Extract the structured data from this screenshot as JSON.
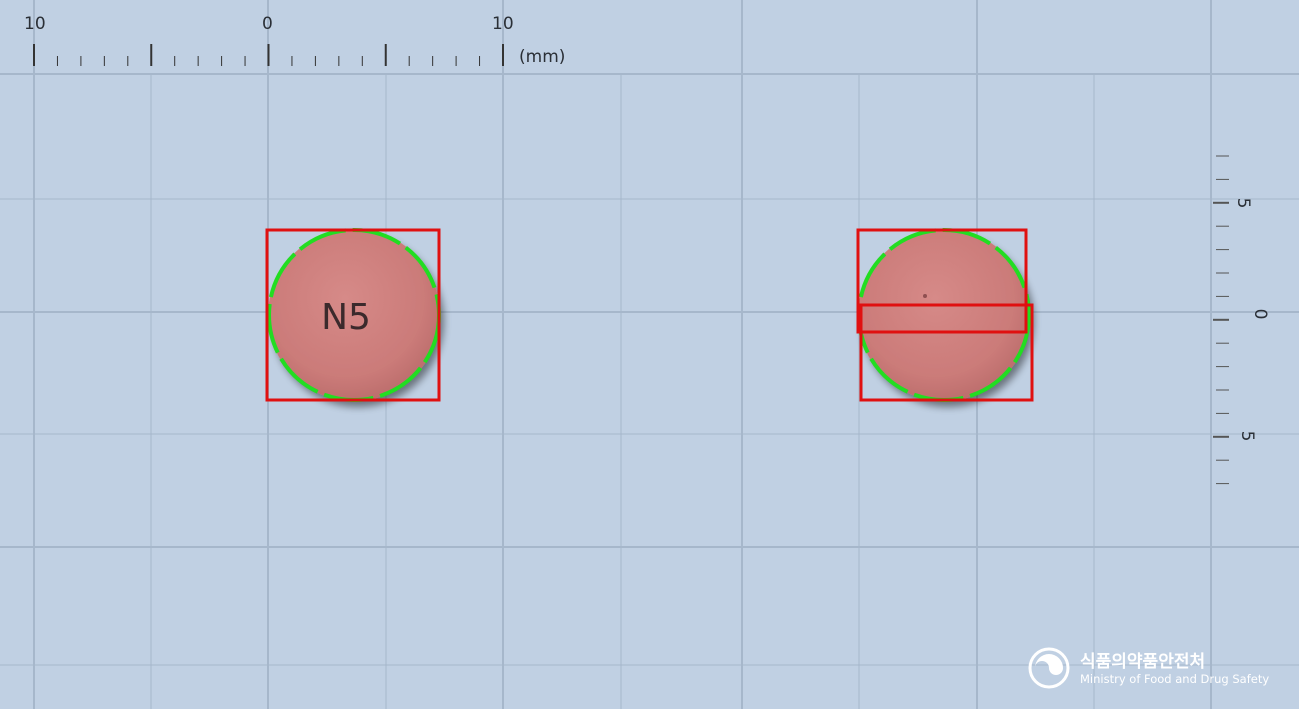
{
  "ruler_top": {
    "labels": [
      "10",
      "0",
      "10"
    ],
    "unit": "(mm)"
  },
  "ruler_right": {
    "labels": [
      "5",
      "0",
      "5"
    ]
  },
  "pill_front": {
    "imprint": "N5",
    "color": "#cf7f7d"
  },
  "pill_back": {
    "imprint": "",
    "color": "#cf7f7d"
  },
  "colors": {
    "background": "#c0d0e3",
    "grid": "#a6b7cb",
    "bounding_box": "#e01010",
    "contour": "#22dd22"
  },
  "logo": {
    "korean": "식품의약품안전처",
    "english": "Ministry of Food and Drug Safety"
  }
}
